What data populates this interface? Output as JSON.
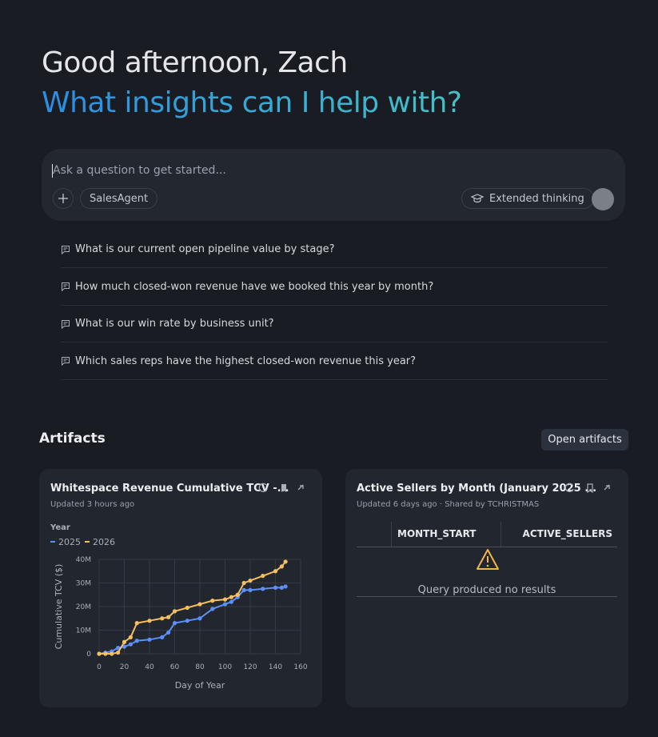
{
  "header": {
    "greeting": "Good afternoon, Zach",
    "headline": "What insights can I help with?"
  },
  "composer": {
    "placeholder": "Ask a question to get started...",
    "agent": "SalesAgent",
    "mode": "Extended thinking"
  },
  "suggestions": [
    "What is our current open pipeline value by stage?",
    "How much closed-won revenue have we booked this year by month?",
    "What is our win rate by business unit?",
    "Which sales reps have the highest closed-won revenue this year?"
  ],
  "artifacts": {
    "title": "Artifacts",
    "open_button": "Open artifacts",
    "cards": [
      {
        "title": "Whitespace Revenue Cumulative TCV -...",
        "updated": "Updated 3 hours ago"
      },
      {
        "title": "Active Sellers by Month (January 2025 ...",
        "updated": "Updated 6 days ago · Shared by TCHRISTMAS",
        "columns": [
          "MONTH_START",
          "ACTIVE_SELLERS"
        ],
        "message": "Query produced no results"
      }
    ]
  },
  "chart_data": {
    "type": "line",
    "legend_title": "Year",
    "x_label": "Day of Year",
    "y_label": "Cumulative TCV ($)",
    "x": [
      0,
      5,
      10,
      15,
      20,
      25,
      30,
      40,
      50,
      55,
      60,
      70,
      80,
      90,
      100,
      105,
      110,
      115,
      120,
      130,
      140,
      145,
      148
    ],
    "series": [
      {
        "name": "2025",
        "color": "#5b8ff9",
        "values": [
          0,
          500000,
          1000000,
          2500000,
          3000000,
          4000000,
          5500000,
          6000000,
          7000000,
          9000000,
          13000000,
          14000000,
          15000000,
          19000000,
          21000000,
          22000000,
          24000000,
          27000000,
          27000000,
          27500000,
          28000000,
          28000000,
          28500000
        ]
      },
      {
        "name": "2026",
        "color": "#f5c060",
        "values": [
          0,
          0,
          0,
          500000,
          5000000,
          7000000,
          13000000,
          14000000,
          15000000,
          15500000,
          18000000,
          19500000,
          21000000,
          22500000,
          23000000,
          24000000,
          25000000,
          30000000,
          31000000,
          33000000,
          35000000,
          37000000,
          39000000
        ]
      }
    ],
    "xlim": [
      0,
      160
    ],
    "xticks": [
      0,
      20,
      40,
      60,
      80,
      100,
      120,
      140,
      160
    ],
    "ylim": [
      0,
      40000000
    ],
    "yticks": [
      0,
      {
        "value": 10000000,
        "label": "10M"
      },
      {
        "value": 20000000,
        "label": "20M"
      },
      {
        "value": 30000000,
        "label": "30M"
      },
      {
        "value": 40000000,
        "label": "40M"
      }
    ],
    "grid": true
  }
}
